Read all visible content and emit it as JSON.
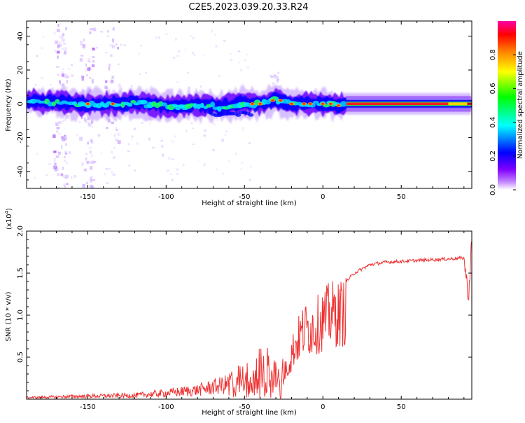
{
  "title": "C2E5.2023.039.20.33.R24",
  "colors": {
    "snr_line": "#ee3333",
    "axis": "#000000",
    "background": "#ffffff"
  },
  "chart_data": [
    {
      "type": "heatmap",
      "name": "spectrogram",
      "xlabel": "Height of straight line (km)",
      "ylabel": "Frequency (Hz)",
      "xlim": [
        -189,
        95
      ],
      "ylim": [
        -50,
        49
      ],
      "x_ticks": [
        -150,
        -100,
        -50,
        0,
        50
      ],
      "y_ticks": [
        -40,
        -20,
        0,
        20,
        40
      ],
      "colorbar": {
        "label": "Normalized spectral amplitude",
        "range": [
          0,
          1
        ],
        "ticks": [
          0.0,
          0.2,
          0.4,
          0.6,
          0.8
        ],
        "colormap": [
          "#ffffff",
          "#8000ff",
          "#0000ff",
          "#00ffff",
          "#00ff00",
          "#ffff00",
          "#ff8000",
          "#ff0000",
          "#ff00ff"
        ]
      },
      "ridge": [
        {
          "x": -189,
          "y": 1.5
        },
        {
          "x": -170,
          "y": 1.0
        },
        {
          "x": -150,
          "y": -0.5
        },
        {
          "x": -120,
          "y": 0.5
        },
        {
          "x": -100,
          "y": -1.5
        },
        {
          "x": -80,
          "y": -0.5
        },
        {
          "x": -65,
          "y": -2.0
        },
        {
          "x": -50,
          "y": 0.5
        },
        {
          "x": -40,
          "y": -0.5
        },
        {
          "x": -30,
          "y": 2.5
        },
        {
          "x": -20,
          "y": 0.0
        },
        {
          "x": 0,
          "y": 0.0
        },
        {
          "x": 10,
          "y": -1.0
        },
        {
          "x": 15,
          "y": 0.0
        },
        {
          "x": 95,
          "y": 0.0
        }
      ],
      "spray_columns": [
        -168,
        -151,
        -135
      ]
    },
    {
      "type": "line",
      "name": "snr",
      "xlabel": "Height of straight line (km)",
      "ylabel": "SNR (10 * v/v)",
      "y_scale_label": "(x10",
      "y_scale_exp": "4",
      "y_scale_close": ")",
      "xlim": [
        -189,
        95
      ],
      "ylim": [
        0,
        2.0
      ],
      "x_ticks": [
        -150,
        -100,
        -50,
        0,
        50
      ],
      "y_ticks": [
        "0.5",
        "1.0",
        "1.5",
        "2.0"
      ],
      "envelope": [
        {
          "x": -189,
          "y": 0.02
        },
        {
          "x": -150,
          "y": 0.04
        },
        {
          "x": -120,
          "y": 0.05
        },
        {
          "x": -100,
          "y": 0.08
        },
        {
          "x": -80,
          "y": 0.12
        },
        {
          "x": -60,
          "y": 0.2
        },
        {
          "x": -50,
          "y": 0.3
        },
        {
          "x": -45,
          "y": 0.35
        },
        {
          "x": -40,
          "y": 0.4
        },
        {
          "x": -33,
          "y": 0.4
        },
        {
          "x": -28,
          "y": 0.25
        },
        {
          "x": -22,
          "y": 0.55
        },
        {
          "x": -18,
          "y": 0.85
        },
        {
          "x": -12,
          "y": 1.1
        },
        {
          "x": -5,
          "y": 1.15
        },
        {
          "x": 0,
          "y": 1.25
        },
        {
          "x": 5,
          "y": 1.35
        },
        {
          "x": 10,
          "y": 1.35
        },
        {
          "x": 15,
          "y": 1.4
        },
        {
          "x": 20,
          "y": 1.5
        },
        {
          "x": 30,
          "y": 1.6
        },
        {
          "x": 40,
          "y": 1.63
        },
        {
          "x": 60,
          "y": 1.65
        },
        {
          "x": 80,
          "y": 1.67
        },
        {
          "x": 90,
          "y": 1.68
        },
        {
          "x": 93,
          "y": 1.2
        },
        {
          "x": 95,
          "y": 1.95
        }
      ]
    }
  ]
}
